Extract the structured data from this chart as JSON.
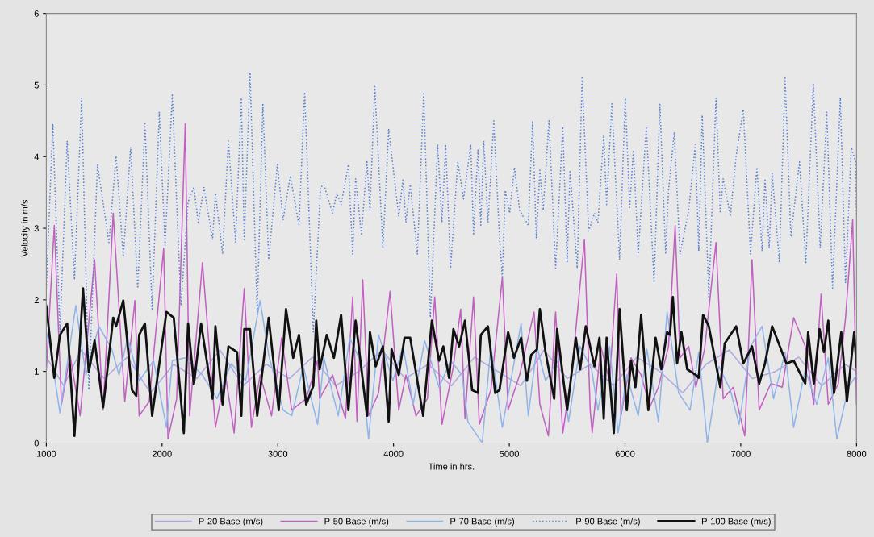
{
  "chart_data": {
    "type": "line",
    "xlabel": "Time in hrs.",
    "ylabel": "Velocity in m/s",
    "xlim": [
      1000,
      8000
    ],
    "xticks": [
      1000,
      2000,
      3000,
      4000,
      5000,
      6000,
      7000,
      8000
    ],
    "ylim": [
      0,
      6
    ],
    "yticks": [
      0,
      1,
      2,
      3,
      4,
      5,
      6
    ],
    "grid": false,
    "legend": "bottom",
    "marker": "none",
    "series": [
      {
        "name": "P-20 Base (m/s)",
        "color": "#b0a8e0",
        "line_style": "solid",
        "x": [
          1000,
          1150,
          1300,
          1500,
          1700,
          1900,
          2100,
          2300,
          2500,
          2700,
          2900,
          3100,
          3300,
          3500,
          3700,
          3900,
          4100,
          4300,
          4500,
          4700,
          4900,
          5100,
          5300,
          5500,
          5700,
          5900,
          6100,
          6300,
          6500,
          6700,
          6900,
          7100,
          7300,
          7500,
          7700,
          7900,
          8000
        ],
        "values": [
          1.2,
          0.8,
          1.3,
          0.9,
          1.2,
          0.7,
          1.1,
          0.9,
          1.3,
          0.8,
          1.1,
          0.9,
          1.2,
          0.8,
          1.0,
          1.3,
          0.9,
          1.1,
          0.8,
          1.2,
          1.0,
          0.8,
          1.3,
          0.9,
          1.1,
          0.8,
          1.2,
          1.0,
          0.7,
          1.1,
          1.3,
          0.9,
          1.0,
          1.2,
          0.8,
          1.1,
          1.0
        ]
      },
      {
        "name": "P-50 Base (m/s)",
        "color": "#c060c0",
        "line_style": "solid",
        "x": [
          1000,
          1069,
          1131,
          1205,
          1292,
          1417,
          1491,
          1578,
          1678,
          1765,
          1802,
          1889,
          2014,
          2051,
          2126,
          2200,
          2238,
          2349,
          2461,
          2548,
          2623,
          2710,
          2772,
          2847,
          2946,
          3033,
          3120,
          3245,
          3344,
          3361,
          3473,
          3585,
          3647,
          3684,
          3734,
          3784,
          3871,
          3970,
          4045,
          4107,
          4194,
          4293,
          4356,
          4418,
          4517,
          4580,
          4617,
          4691,
          4741,
          4841,
          4940,
          4990,
          5089,
          5214,
          5264,
          5338,
          5400,
          5462,
          5537,
          5649,
          5699,
          5716,
          5791,
          5866,
          5928,
          5965,
          6052,
          6139,
          6214,
          6288,
          6376,
          6433,
          6475,
          6550,
          6612,
          6687,
          6786,
          6848,
          6935,
          7035,
          7097,
          7159,
          7259,
          7358,
          7457,
          7557,
          7631,
          7694,
          7756,
          7843,
          7905,
          7967,
          8000
        ],
        "values": [
          1.02,
          3.04,
          0.54,
          1.23,
          0.38,
          2.56,
          0.46,
          3.21,
          0.58,
          1.99,
          0.38,
          0.58,
          2.72,
          0.06,
          0.62,
          4.46,
          0.38,
          2.52,
          0.22,
          0.95,
          0.14,
          2.16,
          0.22,
          0.95,
          0.38,
          1.47,
          0.46,
          0.62,
          1.15,
          0.62,
          0.95,
          0.34,
          2.04,
          0.3,
          2.28,
          0.38,
          0.7,
          2.12,
          0.46,
          0.95,
          0.38,
          0.62,
          2.04,
          0.26,
          1.07,
          1.87,
          0.34,
          2.04,
          0.26,
          0.74,
          2.32,
          0.46,
          0.95,
          1.83,
          0.54,
          0.1,
          1.83,
          0.14,
          0.95,
          2.84,
          0.46,
          0.14,
          1.35,
          0.87,
          2.36,
          0.38,
          1.19,
          0.95,
          0.5,
          0.78,
          1.35,
          3.04,
          1.19,
          1.35,
          0.78,
          1.31,
          2.8,
          0.62,
          0.78,
          0.1,
          2.56,
          0.46,
          0.83,
          0.78,
          1.75,
          1.35,
          0.54,
          2.08,
          0.54,
          0.83,
          1.75,
          3.12,
          0.54
        ]
      },
      {
        "name": "P-70 Base (m/s)",
        "color": "#90b4e8",
        "line_style": "solid",
        "x": [
          1000,
          1031,
          1118,
          1255,
          1342,
          1454,
          1566,
          1628,
          1703,
          1802,
          1927,
          2038,
          2088,
          2200,
          2349,
          2474,
          2598,
          2722,
          2847,
          2921,
          3046,
          3120,
          3220,
          3344,
          3398,
          3522,
          3622,
          3722,
          3784,
          3871,
          3995,
          4082,
          4169,
          4269,
          4393,
          4493,
          4592,
          4642,
          4766,
          4841,
          4940,
          5040,
          5102,
          5164,
          5239,
          5313,
          5437,
          5512,
          5612,
          5711,
          5766,
          5866,
          5940,
          6015,
          6114,
          6189,
          6288,
          6363,
          6463,
          6562,
          6637,
          6711,
          6811,
          6910,
          6985,
          7084,
          7184,
          7283,
          7383,
          7457,
          7557,
          7656,
          7756,
          7830,
          7930,
          8000
        ],
        "values": [
          1.55,
          1.35,
          0.42,
          1.92,
          0.95,
          1.63,
          1.31,
          0.95,
          1.47,
          0.87,
          1.15,
          0.22,
          1.15,
          1.19,
          0.95,
          0.62,
          1.11,
          0.87,
          1.99,
          1.23,
          0.46,
          0.38,
          1.07,
          0.26,
          1.19,
          0.38,
          1.47,
          1.11,
          0.06,
          1.51,
          0.87,
          1.35,
          0.54,
          1.43,
          0.78,
          1.15,
          0.95,
          0.3,
          0.0,
          1.35,
          0.22,
          1.11,
          1.67,
          0.38,
          1.35,
          0.87,
          1.19,
          0.3,
          1.35,
          1.03,
          0.46,
          1.35,
          0.14,
          0.95,
          0.38,
          1.31,
          0.3,
          1.83,
          0.7,
          0.46,
          1.27,
          0.0,
          1.07,
          0.74,
          0.26,
          1.35,
          1.63,
          0.62,
          1.27,
          0.22,
          1.03,
          0.54,
          1.19,
          0.06,
          0.78,
          0.95
        ]
      },
      {
        "name": "P-90 Base (m/s)",
        "color": "#5b7fd1",
        "line_style": "dotted",
        "x": [
          1000,
          1056,
          1118,
          1180,
          1243,
          1305,
          1367,
          1442,
          1541,
          1603,
          1665,
          1728,
          1790,
          1852,
          1914,
          1976,
          2026,
          2088,
          2163,
          2225,
          2275,
          2312,
          2362,
          2436,
          2461,
          2523,
          2573,
          2635,
          2685,
          2710,
          2760,
          2822,
          2871,
          2921,
          2996,
          3046,
          3108,
          3183,
          3232,
          3307,
          3369,
          3398,
          3473,
          3510,
          3547,
          3610,
          3647,
          3672,
          3722,
          3771,
          3796,
          3838,
          3908,
          3958,
          4045,
          4082,
          4107,
          4144,
          4206,
          4261,
          4318,
          4381,
          4418,
          4450,
          4493,
          4555,
          4605,
          4667,
          4691,
          4729,
          4754,
          4779,
          4816,
          4866,
          4915,
          4940,
          4965,
          5003,
          5045,
          5089,
          5164,
          5201,
          5234,
          5264,
          5293,
          5343,
          5400,
          5462,
          5500,
          5525,
          5587,
          5629,
          5686,
          5736,
          5766,
          5816,
          5841,
          5886,
          5953,
          6002,
          6040,
          6072,
          6114,
          6184,
          6251,
          6301,
          6351,
          6376,
          6425,
          6475,
          6550,
          6607,
          6637,
          6667,
          6724,
          6786,
          6823,
          6848,
          6910,
          6960,
          7022,
          7084,
          7139,
          7184,
          7209,
          7246,
          7271,
          7333,
          7383,
          7433,
          7507,
          7562,
          7627,
          7686,
          7743,
          7793,
          7860,
          7905,
          7955,
          7992,
          8000
        ],
        "values": [
          2.16,
          4.46,
          1.55,
          4.22,
          2.28,
          4.82,
          0.74,
          3.89,
          2.8,
          4.01,
          2.6,
          4.13,
          2.16,
          4.46,
          1.87,
          4.62,
          2.76,
          4.86,
          1.92,
          3.37,
          3.57,
          3.08,
          3.57,
          2.84,
          3.49,
          2.64,
          4.22,
          2.8,
          4.82,
          2.84,
          5.18,
          1.83,
          4.74,
          2.56,
          3.89,
          3.12,
          3.73,
          3.04,
          4.9,
          1.55,
          3.57,
          3.61,
          3.21,
          3.49,
          3.33,
          3.89,
          2.64,
          3.69,
          2.92,
          3.93,
          3.25,
          4.98,
          2.72,
          4.38,
          3.17,
          3.69,
          3.08,
          3.61,
          2.64,
          4.9,
          1.75,
          4.17,
          3.08,
          4.17,
          2.44,
          3.93,
          3.41,
          4.17,
          2.92,
          4.09,
          3.04,
          4.22,
          3.08,
          4.5,
          2.88,
          2.32,
          3.53,
          3.21,
          3.85,
          3.25,
          3.04,
          4.5,
          2.84,
          3.81,
          3.25,
          4.5,
          2.44,
          4.42,
          2.52,
          3.81,
          2.44,
          5.1,
          2.96,
          3.21,
          3.08,
          4.3,
          3.33,
          4.74,
          2.56,
          4.82,
          3.29,
          4.09,
          2.64,
          4.42,
          2.24,
          4.74,
          2.64,
          3.53,
          4.34,
          2.64,
          3.25,
          4.17,
          2.68,
          4.58,
          2.04,
          4.82,
          3.21,
          3.69,
          3.17,
          4.01,
          4.66,
          2.64,
          3.85,
          2.68,
          3.69,
          2.72,
          3.77,
          2.52,
          5.1,
          2.88,
          3.93,
          2.52,
          5.02,
          2.72,
          4.62,
          2.16,
          4.82,
          2.24,
          4.13,
          3.93,
          3.17
        ]
      },
      {
        "name": "P-100 Base (m/s)",
        "color": "#111111",
        "line_style": "solid",
        "x": [
          1000,
          1069,
          1118,
          1180,
          1243,
          1317,
          1367,
          1417,
          1491,
          1578,
          1603,
          1665,
          1740,
          1777,
          1802,
          1852,
          1914,
          2038,
          2101,
          2188,
          2225,
          2275,
          2337,
          2436,
          2461,
          2523,
          2573,
          2648,
          2685,
          2710,
          2760,
          2822,
          2921,
          3008,
          3071,
          3133,
          3183,
          3245,
          3307,
          3332,
          3361,
          3423,
          3485,
          3547,
          3610,
          3672,
          3771,
          3796,
          3846,
          3908,
          3958,
          3983,
          4045,
          4095,
          4144,
          4256,
          4331,
          4393,
          4430,
          4480,
          4517,
          4567,
          4617,
          4679,
          4729,
          4754,
          4816,
          4878,
          4915,
          4990,
          5040,
          5102,
          5152,
          5189,
          5239,
          5264,
          5313,
          5388,
          5413,
          5500,
          5575,
          5612,
          5661,
          5736,
          5779,
          5816,
          5841,
          5903,
          5953,
          6015,
          6052,
          6090,
          6139,
          6201,
          6264,
          6313,
          6363,
          6388,
          6413,
          6450,
          6487,
          6537,
          6612,
          6637,
          6674,
          6724,
          6823,
          6861,
          6960,
          7022,
          7097,
          7159,
          7209,
          7271,
          7395,
          7457,
          7557,
          7582,
          7631,
          7681,
          7719,
          7756,
          7806,
          7868,
          7917,
          7980,
          8000
        ],
        "values": [
          1.91,
          0.91,
          1.51,
          1.67,
          0.1,
          2.16,
          0.99,
          1.43,
          0.5,
          1.75,
          1.63,
          1.99,
          0.74,
          0.66,
          1.51,
          1.67,
          0.38,
          1.83,
          1.75,
          0.14,
          1.67,
          0.82,
          1.67,
          0.62,
          1.63,
          0.54,
          1.35,
          1.27,
          0.38,
          1.59,
          1.59,
          0.38,
          1.75,
          0.46,
          1.87,
          1.19,
          1.51,
          0.54,
          0.8,
          1.71,
          1.03,
          1.51,
          1.19,
          1.79,
          0.46,
          1.71,
          0.38,
          1.55,
          1.07,
          1.35,
          0.3,
          1.31,
          0.95,
          1.47,
          1.47,
          0.38,
          1.71,
          1.15,
          1.35,
          0.91,
          1.59,
          1.35,
          1.71,
          0.74,
          0.7,
          1.51,
          1.63,
          0.7,
          0.74,
          1.55,
          1.19,
          1.47,
          0.87,
          1.23,
          1.31,
          1.87,
          1.27,
          0.62,
          1.59,
          0.46,
          1.47,
          1.03,
          1.63,
          1.07,
          1.47,
          0.34,
          1.47,
          0.14,
          1.87,
          0.46,
          1.15,
          0.78,
          1.79,
          0.46,
          1.47,
          1.03,
          1.55,
          1.51,
          2.04,
          1.11,
          1.55,
          1.03,
          0.95,
          0.91,
          1.79,
          1.63,
          0.78,
          1.39,
          1.63,
          1.11,
          1.35,
          0.83,
          1.11,
          1.63,
          1.11,
          1.15,
          0.83,
          1.55,
          0.83,
          1.59,
          1.27,
          1.71,
          0.7,
          1.55,
          0.58,
          1.55,
          1.07
        ]
      }
    ]
  }
}
